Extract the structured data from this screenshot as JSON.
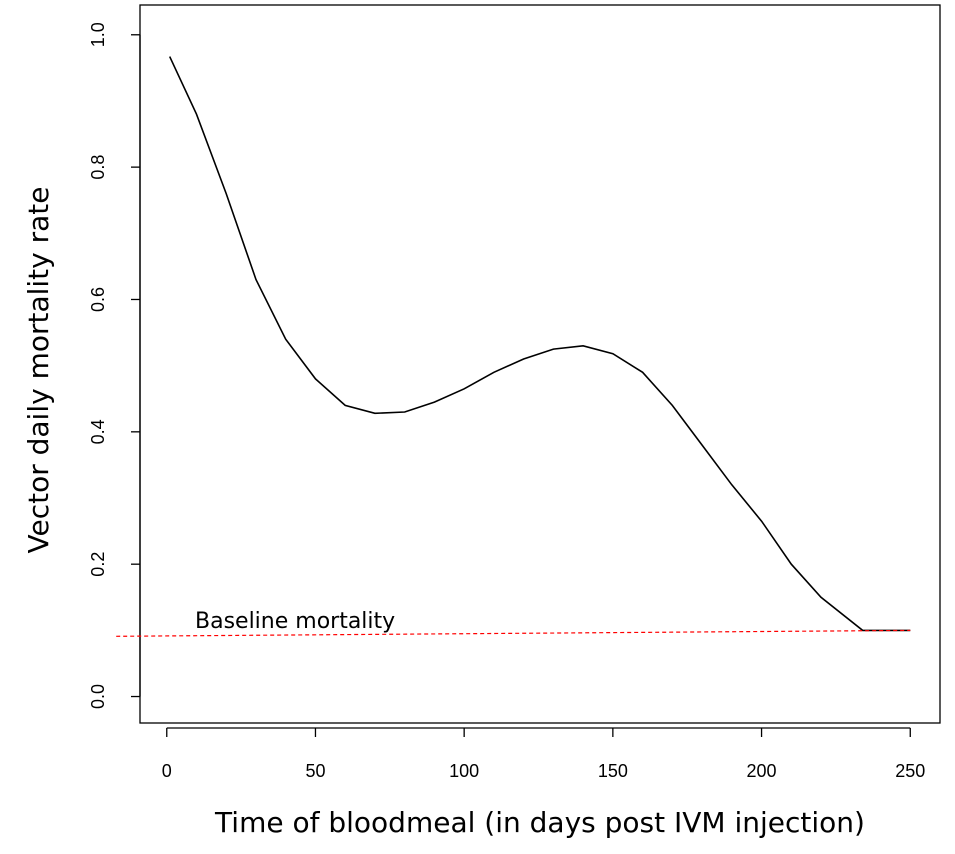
{
  "chart_data": {
    "type": "line",
    "xlabel": "Time of bloodmeal (in days post IVM injection)",
    "ylabel": "Vector daily mortality rate",
    "annotation": "Baseline mortality",
    "xlim": [
      -9,
      260
    ],
    "ylim": [
      -0.04,
      1.045
    ],
    "xticks": [
      0,
      50,
      100,
      150,
      200,
      250
    ],
    "yticks": [
      {
        "value": 0,
        "label": "0.0"
      },
      0.2,
      0.4,
      0.6,
      0.8,
      {
        "value": 1,
        "label": "1.0"
      }
    ],
    "series": [
      {
        "color": "#000000",
        "dashed": false,
        "x": [
          1,
          10,
          20,
          30,
          40,
          50,
          60,
          70,
          80,
          90,
          100,
          110,
          120,
          130,
          140,
          150,
          160,
          170,
          180,
          190,
          200,
          210,
          220,
          234,
          250
        ],
        "values": [
          0.967,
          0.88,
          0.76,
          0.63,
          0.54,
          0.48,
          0.44,
          0.428,
          0.43,
          0.445,
          0.465,
          0.49,
          0.51,
          0.525,
          0.53,
          0.518,
          0.49,
          0.44,
          0.38,
          0.32,
          0.265,
          0.2,
          0.15,
          0.1,
          0.1
        ]
      },
      {
        "color": "#ff0000",
        "dashed": true,
        "x": [
          -17,
          250
        ],
        "values": [
          0.091,
          0.1
        ]
      }
    ]
  }
}
